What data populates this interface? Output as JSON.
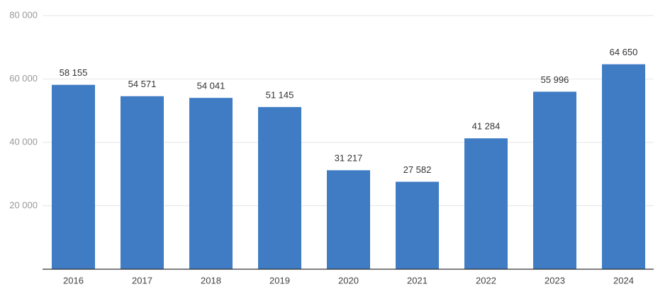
{
  "chart_data": {
    "type": "bar",
    "categories": [
      "2016",
      "2017",
      "2018",
      "2019",
      "2020",
      "2021",
      "2022",
      "2023",
      "2024"
    ],
    "values": [
      58155,
      54571,
      54041,
      51145,
      31217,
      27582,
      41284,
      55996,
      64650
    ],
    "value_labels": [
      "58 155",
      "54 571",
      "54 041",
      "51 145",
      "31 217",
      "27 582",
      "41 284",
      "55 996",
      "64 650"
    ],
    "color": "#3f7cc4",
    "ylim": [
      0,
      80000
    ],
    "yticks": [
      {
        "value": 20000,
        "label": "20 000"
      },
      {
        "value": 40000,
        "label": "40 000"
      },
      {
        "value": 60000,
        "label": "60 000"
      },
      {
        "value": 80000,
        "label": "80 000"
      }
    ],
    "grid": true
  }
}
